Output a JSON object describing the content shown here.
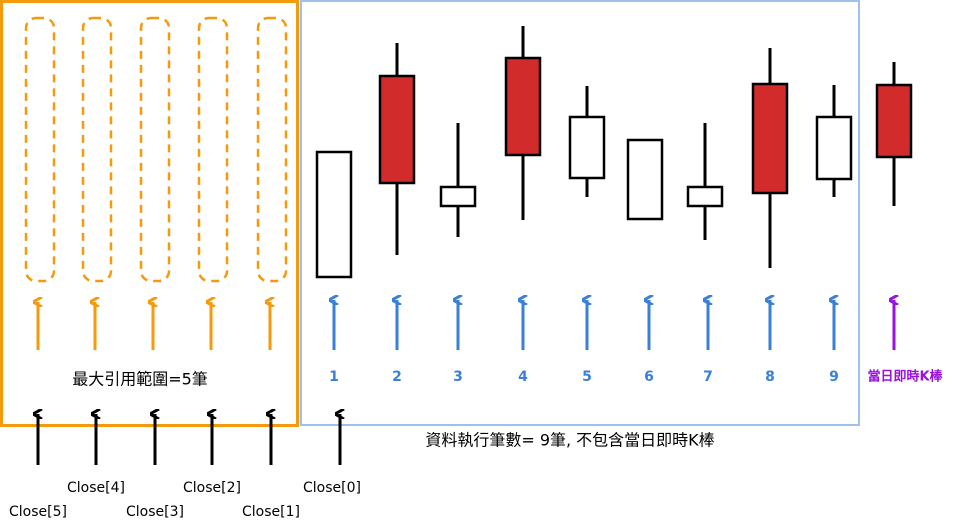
{
  "max_range_label": "最大引用範圍=5筆",
  "bar_numbers": [
    "1",
    "2",
    "3",
    "4",
    "5",
    "6",
    "7",
    "8",
    "9"
  ],
  "current_bar_label": "當日即時K棒",
  "execution_note": "資料執行筆數= 9筆, 不包含當日即時K棒",
  "close_labels": [
    "Close[5]",
    "Close[4]",
    "Close[3]",
    "Close[2]",
    "Close[1]",
    "Close[0]"
  ]
}
